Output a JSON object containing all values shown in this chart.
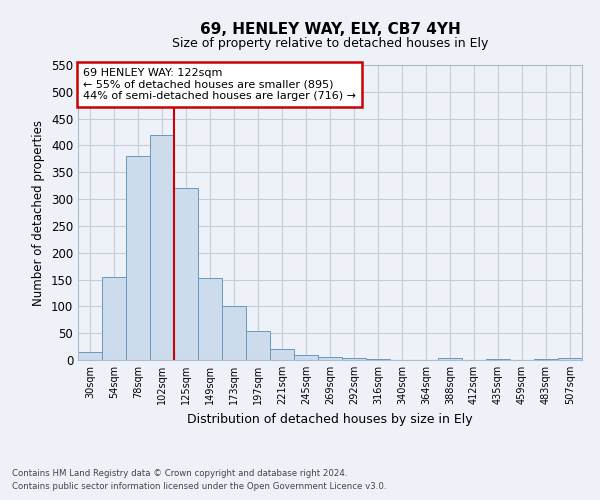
{
  "title": "69, HENLEY WAY, ELY, CB7 4YH",
  "subtitle": "Size of property relative to detached houses in Ely",
  "xlabel": "Distribution of detached houses by size in Ely",
  "ylabel": "Number of detached properties",
  "bar_labels": [
    "30sqm",
    "54sqm",
    "78sqm",
    "102sqm",
    "125sqm",
    "149sqm",
    "173sqm",
    "197sqm",
    "221sqm",
    "245sqm",
    "269sqm",
    "292sqm",
    "316sqm",
    "340sqm",
    "364sqm",
    "388sqm",
    "412sqm",
    "435sqm",
    "459sqm",
    "483sqm",
    "507sqm"
  ],
  "bar_heights": [
    15,
    155,
    380,
    420,
    320,
    153,
    100,
    55,
    20,
    10,
    5,
    4,
    2,
    0,
    0,
    3,
    0,
    2,
    0,
    2,
    3
  ],
  "bar_color": "#ccdcec",
  "bar_edge_color": "#6699bb",
  "vline_color": "#cc0000",
  "ylim": [
    0,
    550
  ],
  "yticks": [
    0,
    50,
    100,
    150,
    200,
    250,
    300,
    350,
    400,
    450,
    500,
    550
  ],
  "annotation_title": "69 HENLEY WAY: 122sqm",
  "annotation_line1": "← 55% of detached houses are smaller (895)",
  "annotation_line2": "44% of semi-detached houses are larger (716) →",
  "annotation_box_color": "#ffffff",
  "annotation_box_edge": "#cc0000",
  "footer_line1": "Contains HM Land Registry data © Crown copyright and database right 2024.",
  "footer_line2": "Contains public sector information licensed under the Open Government Licence v3.0.",
  "bg_color": "#eef2f8",
  "plot_bg_color": "#eef2f8",
  "grid_color": "#c8ccd8"
}
